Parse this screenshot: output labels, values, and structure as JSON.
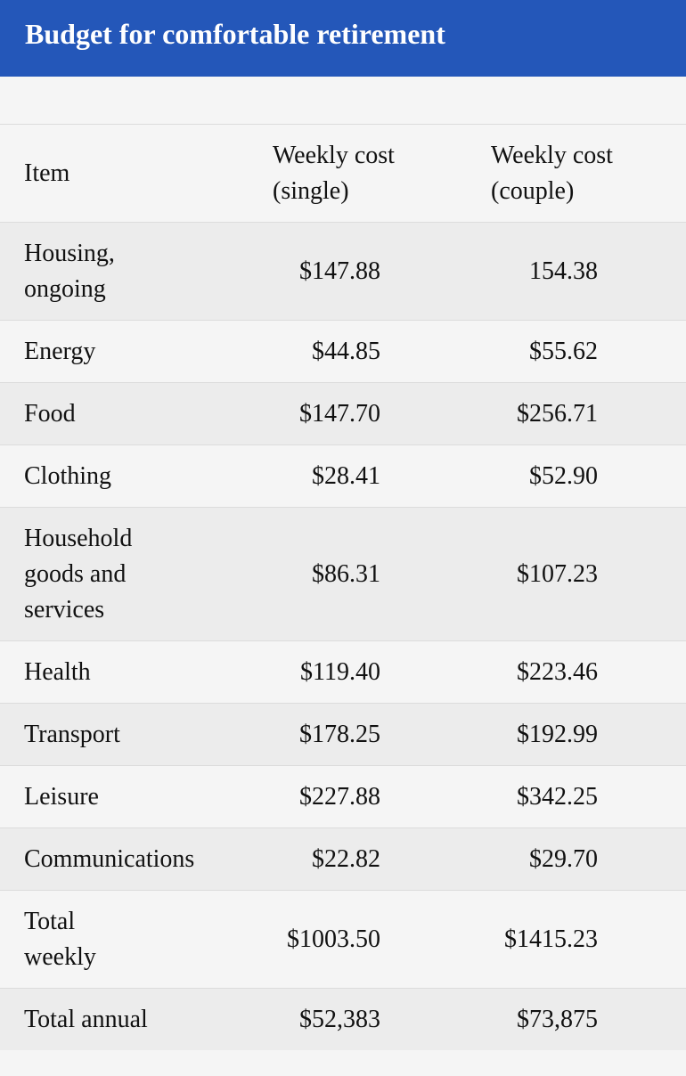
{
  "header": {
    "title": "Budget for comfortable retirement"
  },
  "table": {
    "columns": [
      "Item",
      "Weekly cost (single)",
      "Weekly cost (couple)"
    ],
    "rows": [
      [
        "Housing, ongoing",
        "$147.88",
        "154.38"
      ],
      [
        "Energy",
        "$44.85",
        "$55.62"
      ],
      [
        "Food",
        "$147.70",
        "$256.71"
      ],
      [
        "Clothing",
        "$28.41",
        "$52.90"
      ],
      [
        "Household goods and services",
        "$86.31",
        "$107.23"
      ],
      [
        "Health",
        "$119.40",
        "$223.46"
      ],
      [
        "Transport",
        "$178.25",
        "$192.99"
      ],
      [
        "Leisure",
        "$227.88",
        "$342.25"
      ],
      [
        "Communications",
        "$22.82",
        "$29.70"
      ],
      [
        "Total weekly",
        "$1003.50",
        "$1415.23"
      ],
      [
        "Total annual",
        "$52,383",
        "$73,875"
      ]
    ]
  }
}
